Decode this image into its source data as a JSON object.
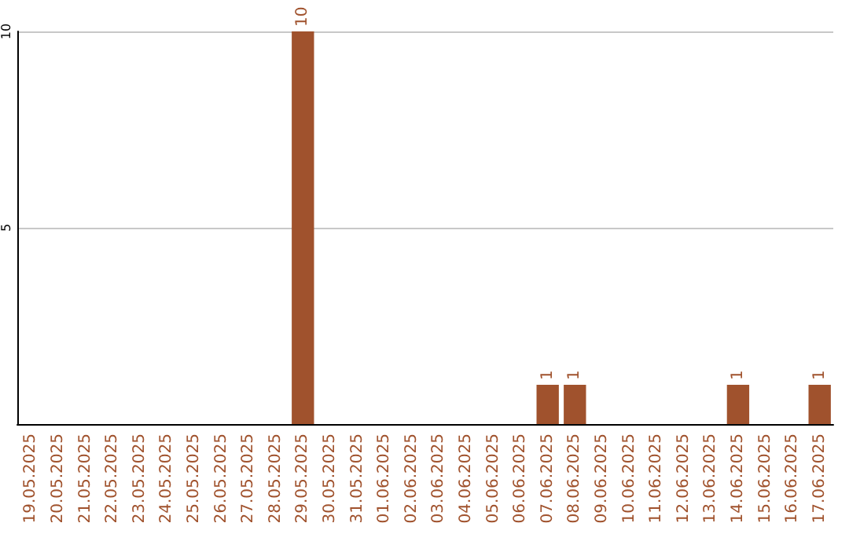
{
  "chart_data": {
    "type": "bar",
    "categories": [
      "19.05.2025",
      "20.05.2025",
      "21.05.2025",
      "22.05.2025",
      "23.05.2025",
      "24.05.2025",
      "25.05.2025",
      "26.05.2025",
      "27.05.2025",
      "28.05.2025",
      "29.05.2025",
      "30.05.2025",
      "31.05.2025",
      "01.06.2025",
      "02.06.2025",
      "03.06.2025",
      "04.06.2025",
      "05.06.2025",
      "06.06.2025",
      "07.06.2025",
      "08.06.2025",
      "09.06.2025",
      "10.06.2025",
      "11.06.2025",
      "12.06.2025",
      "13.06.2025",
      "14.06.2025",
      "15.06.2025",
      "16.06.2025",
      "17.06.2025"
    ],
    "values": [
      0,
      0,
      0,
      0,
      0,
      0,
      0,
      0,
      0,
      0,
      10,
      0,
      0,
      0,
      0,
      0,
      0,
      0,
      0,
      1,
      1,
      0,
      0,
      0,
      0,
      0,
      1,
      0,
      0,
      1
    ],
    "value_labels": [
      null,
      null,
      null,
      null,
      null,
      null,
      null,
      null,
      null,
      null,
      "10",
      null,
      null,
      null,
      null,
      null,
      null,
      null,
      null,
      "1",
      "1",
      null,
      null,
      null,
      null,
      null,
      "1",
      null,
      null,
      "1"
    ],
    "color": "#a0522d",
    "ylim": [
      0,
      10
    ],
    "yticks": [
      {
        "value": 0,
        "label": null
      },
      5,
      10
    ],
    "grid": "y"
  }
}
